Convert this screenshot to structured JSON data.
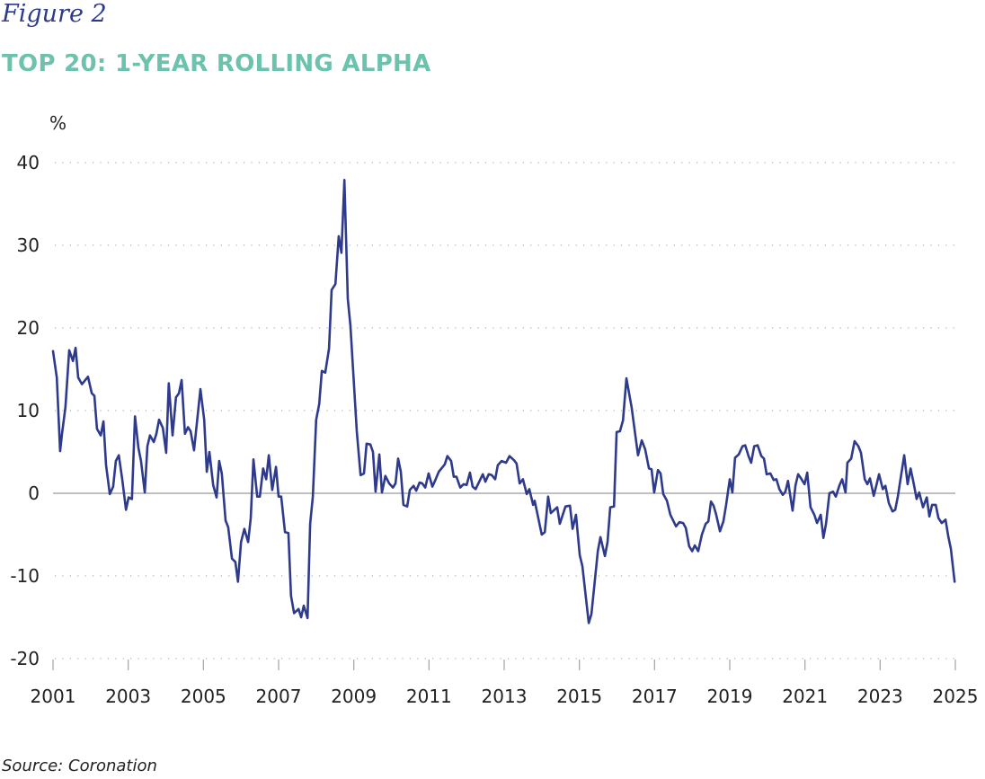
{
  "header": {
    "figure_label": "Figure 2",
    "title": "TOP 20: 1-YEAR ROLLING ALPHA"
  },
  "footer": {
    "source": "Source: Coronation"
  },
  "colors": {
    "line": "#2e3a8c",
    "title": "#6cc2ad",
    "figure_label": "#2e3a8c",
    "grid": "#b0b0b0",
    "zero_line": "#9a9a9a"
  },
  "chart_data": {
    "type": "line",
    "title": "TOP 20: 1-YEAR ROLLING ALPHA",
    "xlabel": "",
    "ylabel": "%",
    "xlim": [
      2001,
      2025
    ],
    "ylim": [
      -20,
      40
    ],
    "x_ticks": [
      "2001",
      "2003",
      "2005",
      "2007",
      "2009",
      "2011",
      "2013",
      "2015",
      "2017",
      "2019",
      "2021",
      "2023",
      "2025"
    ],
    "y_ticks": [
      "40",
      "30",
      "20",
      "10",
      "0",
      "-10",
      "-20"
    ],
    "grid": "horizontal dotted",
    "zero_line": true,
    "legend": "none",
    "series": [
      {
        "points": [
          [
            2001.0,
            17.2
          ],
          [
            2001.1,
            14.0
          ],
          [
            2001.19,
            5.1
          ],
          [
            2001.24,
            7.2
          ],
          [
            2001.33,
            10.4
          ],
          [
            2001.43,
            17.3
          ],
          [
            2001.53,
            16.0
          ],
          [
            2001.6,
            17.6
          ],
          [
            2001.67,
            14.0
          ],
          [
            2001.77,
            13.2
          ],
          [
            2001.93,
            14.1
          ],
          [
            2002.03,
            12.1
          ],
          [
            2002.1,
            11.8
          ],
          [
            2002.17,
            7.8
          ],
          [
            2002.27,
            7.0
          ],
          [
            2002.34,
            8.7
          ],
          [
            2002.41,
            3.4
          ],
          [
            2002.51,
            -0.1
          ],
          [
            2002.6,
            0.8
          ],
          [
            2002.67,
            3.9
          ],
          [
            2002.75,
            4.6
          ],
          [
            2002.84,
            1.7
          ],
          [
            2002.94,
            -2.0
          ],
          [
            2003.01,
            -0.5
          ],
          [
            2003.1,
            -0.7
          ],
          [
            2003.18,
            9.3
          ],
          [
            2003.27,
            5.5
          ],
          [
            2003.34,
            3.9
          ],
          [
            2003.44,
            0.1
          ],
          [
            2003.51,
            5.7
          ],
          [
            2003.58,
            7.0
          ],
          [
            2003.68,
            6.2
          ],
          [
            2003.75,
            7.2
          ],
          [
            2003.82,
            8.9
          ],
          [
            2003.92,
            7.9
          ],
          [
            2004.01,
            4.9
          ],
          [
            2004.08,
            13.3
          ],
          [
            2004.18,
            7.0
          ],
          [
            2004.27,
            11.6
          ],
          [
            2004.35,
            12.1
          ],
          [
            2004.42,
            13.7
          ],
          [
            2004.51,
            7.2
          ],
          [
            2004.59,
            8.0
          ],
          [
            2004.66,
            7.5
          ],
          [
            2004.75,
            5.2
          ],
          [
            2004.92,
            12.6
          ],
          [
            2005.02,
            8.9
          ],
          [
            2005.09,
            2.6
          ],
          [
            2005.16,
            5.0
          ],
          [
            2005.26,
            1.0
          ],
          [
            2005.35,
            -0.5
          ],
          [
            2005.42,
            3.9
          ],
          [
            2005.49,
            2.4
          ],
          [
            2005.59,
            -3.3
          ],
          [
            2005.66,
            -4.1
          ],
          [
            2005.76,
            -7.9
          ],
          [
            2005.85,
            -8.3
          ],
          [
            2005.92,
            -10.7
          ],
          [
            2006.0,
            -5.9
          ],
          [
            2006.09,
            -4.3
          ],
          [
            2006.19,
            -5.9
          ],
          [
            2006.26,
            -3.0
          ],
          [
            2006.33,
            4.1
          ],
          [
            2006.43,
            -0.4
          ],
          [
            2006.5,
            -0.4
          ],
          [
            2006.59,
            3.0
          ],
          [
            2006.67,
            1.7
          ],
          [
            2006.74,
            4.6
          ],
          [
            2006.83,
            0.4
          ],
          [
            2006.93,
            3.2
          ],
          [
            2007.0,
            -0.4
          ],
          [
            2007.07,
            -0.4
          ],
          [
            2007.17,
            -4.7
          ],
          [
            2007.26,
            -4.8
          ],
          [
            2007.33,
            -12.4
          ],
          [
            2007.41,
            -14.5
          ],
          [
            2007.53,
            -14.0
          ],
          [
            2007.6,
            -15.0
          ],
          [
            2007.67,
            -13.6
          ],
          [
            2007.77,
            -15.1
          ],
          [
            2007.84,
            -3.7
          ],
          [
            2007.91,
            -0.4
          ],
          [
            2008.0,
            8.9
          ],
          [
            2008.08,
            10.8
          ],
          [
            2008.15,
            14.8
          ],
          [
            2008.24,
            14.6
          ],
          [
            2008.34,
            17.5
          ],
          [
            2008.41,
            24.6
          ],
          [
            2008.51,
            25.3
          ],
          [
            2008.6,
            31.1
          ],
          [
            2008.67,
            29.1
          ],
          [
            2008.75,
            37.9
          ],
          [
            2008.84,
            23.5
          ],
          [
            2008.91,
            20.3
          ],
          [
            2009.08,
            7.5
          ],
          [
            2009.18,
            2.2
          ],
          [
            2009.27,
            2.4
          ],
          [
            2009.34,
            6.0
          ],
          [
            2009.44,
            5.9
          ],
          [
            2009.51,
            5.0
          ],
          [
            2009.58,
            0.2
          ],
          [
            2009.68,
            4.7
          ],
          [
            2009.75,
            0.1
          ],
          [
            2009.84,
            2.1
          ],
          [
            2009.94,
            1.2
          ],
          [
            2010.04,
            0.7
          ],
          [
            2010.11,
            1.2
          ],
          [
            2010.18,
            4.2
          ],
          [
            2010.25,
            2.6
          ],
          [
            2010.32,
            -1.4
          ],
          [
            2010.42,
            -1.6
          ],
          [
            2010.49,
            0.4
          ],
          [
            2010.59,
            0.9
          ],
          [
            2010.66,
            0.3
          ],
          [
            2010.75,
            1.3
          ],
          [
            2010.82,
            1.2
          ],
          [
            2010.9,
            0.7
          ],
          [
            2010.99,
            2.4
          ],
          [
            2011.09,
            0.8
          ],
          [
            2011.16,
            1.5
          ],
          [
            2011.26,
            2.6
          ],
          [
            2011.42,
            3.5
          ],
          [
            2011.49,
            4.5
          ],
          [
            2011.59,
            3.9
          ],
          [
            2011.66,
            2.0
          ],
          [
            2011.73,
            2.0
          ],
          [
            2011.83,
            0.7
          ],
          [
            2011.92,
            1.1
          ],
          [
            2012.0,
            1.0
          ],
          [
            2012.09,
            2.5
          ],
          [
            2012.16,
            0.8
          ],
          [
            2012.24,
            0.5
          ],
          [
            2012.43,
            2.3
          ],
          [
            2012.5,
            1.4
          ],
          [
            2012.59,
            2.3
          ],
          [
            2012.67,
            2.2
          ],
          [
            2012.76,
            1.7
          ],
          [
            2012.83,
            3.4
          ],
          [
            2012.93,
            3.9
          ],
          [
            2013.05,
            3.7
          ],
          [
            2013.14,
            4.5
          ],
          [
            2013.26,
            4.0
          ],
          [
            2013.33,
            3.6
          ],
          [
            2013.41,
            1.2
          ],
          [
            2013.5,
            1.7
          ],
          [
            2013.6,
            -0.1
          ],
          [
            2013.67,
            0.5
          ],
          [
            2013.77,
            -1.4
          ],
          [
            2013.81,
            -0.9
          ],
          [
            2014.0,
            -5.0
          ],
          [
            2014.08,
            -4.7
          ],
          [
            2014.17,
            -0.4
          ],
          [
            2014.24,
            -2.4
          ],
          [
            2014.41,
            -1.7
          ],
          [
            2014.48,
            -3.7
          ],
          [
            2014.63,
            -1.6
          ],
          [
            2014.75,
            -1.5
          ],
          [
            2014.82,
            -4.3
          ],
          [
            2014.91,
            -2.6
          ],
          [
            2015.01,
            -7.5
          ],
          [
            2015.08,
            -8.8
          ],
          [
            2015.25,
            -15.7
          ],
          [
            2015.32,
            -14.6
          ],
          [
            2015.49,
            -7.0
          ],
          [
            2015.56,
            -5.3
          ],
          [
            2015.68,
            -7.6
          ],
          [
            2015.75,
            -5.9
          ],
          [
            2015.82,
            -1.7
          ],
          [
            2015.92,
            -1.6
          ],
          [
            2015.99,
            7.4
          ],
          [
            2016.08,
            7.5
          ],
          [
            2016.16,
            8.8
          ],
          [
            2016.25,
            13.9
          ],
          [
            2016.39,
            10.4
          ],
          [
            2016.56,
            4.6
          ],
          [
            2016.66,
            6.4
          ],
          [
            2016.75,
            5.3
          ],
          [
            2016.85,
            3.0
          ],
          [
            2016.92,
            2.9
          ],
          [
            2016.99,
            0.1
          ],
          [
            2017.09,
            2.8
          ],
          [
            2017.16,
            2.4
          ],
          [
            2017.23,
            -0.1
          ],
          [
            2017.33,
            -0.9
          ],
          [
            2017.42,
            -2.6
          ],
          [
            2017.57,
            -4.0
          ],
          [
            2017.66,
            -3.5
          ],
          [
            2017.76,
            -3.6
          ],
          [
            2017.83,
            -4.2
          ],
          [
            2017.92,
            -6.4
          ],
          [
            2018.0,
            -7.0
          ],
          [
            2018.07,
            -6.3
          ],
          [
            2018.16,
            -7.0
          ],
          [
            2018.26,
            -5.0
          ],
          [
            2018.36,
            -3.7
          ],
          [
            2018.43,
            -3.4
          ],
          [
            2018.5,
            -1.0
          ],
          [
            2018.57,
            -1.5
          ],
          [
            2018.64,
            -2.6
          ],
          [
            2018.74,
            -4.6
          ],
          [
            2018.83,
            -3.4
          ],
          [
            2018.9,
            -1.5
          ],
          [
            2019.0,
            1.7
          ],
          [
            2019.07,
            0.1
          ],
          [
            2019.14,
            4.3
          ],
          [
            2019.24,
            4.7
          ],
          [
            2019.34,
            5.7
          ],
          [
            2019.41,
            5.8
          ],
          [
            2019.5,
            4.5
          ],
          [
            2019.57,
            3.7
          ],
          [
            2019.65,
            5.7
          ],
          [
            2019.74,
            5.8
          ],
          [
            2019.84,
            4.5
          ],
          [
            2019.91,
            4.2
          ],
          [
            2019.98,
            2.3
          ],
          [
            2020.08,
            2.4
          ],
          [
            2020.17,
            1.6
          ],
          [
            2020.24,
            1.7
          ],
          [
            2020.32,
            0.5
          ],
          [
            2020.41,
            -0.2
          ],
          [
            2020.48,
            0.2
          ],
          [
            2020.55,
            1.5
          ],
          [
            2020.67,
            -2.1
          ],
          [
            2020.75,
            1.0
          ],
          [
            2020.82,
            2.3
          ],
          [
            2020.91,
            1.7
          ],
          [
            2020.99,
            1.1
          ],
          [
            2021.06,
            2.5
          ],
          [
            2021.15,
            -1.7
          ],
          [
            2021.25,
            -2.6
          ],
          [
            2021.32,
            -3.6
          ],
          [
            2021.42,
            -2.6
          ],
          [
            2021.49,
            -5.4
          ],
          [
            2021.56,
            -3.7
          ],
          [
            2021.65,
            0.0
          ],
          [
            2021.75,
            0.2
          ],
          [
            2021.82,
            -0.4
          ],
          [
            2021.92,
            1.0
          ],
          [
            2021.99,
            1.7
          ],
          [
            2022.08,
            0.1
          ],
          [
            2022.13,
            3.7
          ],
          [
            2022.23,
            4.2
          ],
          [
            2022.32,
            6.3
          ],
          [
            2022.42,
            5.7
          ],
          [
            2022.49,
            4.9
          ],
          [
            2022.59,
            1.7
          ],
          [
            2022.66,
            1.1
          ],
          [
            2022.73,
            1.8
          ],
          [
            2022.83,
            -0.3
          ],
          [
            2022.9,
            1.0
          ],
          [
            2022.97,
            2.3
          ],
          [
            2023.07,
            0.5
          ],
          [
            2023.14,
            0.9
          ],
          [
            2023.23,
            -1.2
          ],
          [
            2023.33,
            -2.2
          ],
          [
            2023.4,
            -2.0
          ],
          [
            2023.47,
            -0.4
          ],
          [
            2023.64,
            4.6
          ],
          [
            2023.73,
            1.1
          ],
          [
            2023.81,
            3.0
          ],
          [
            2023.9,
            1.0
          ],
          [
            2023.97,
            -0.7
          ],
          [
            2024.04,
            0.1
          ],
          [
            2024.14,
            -1.7
          ],
          [
            2024.24,
            -0.5
          ],
          [
            2024.31,
            -2.8
          ],
          [
            2024.38,
            -1.4
          ],
          [
            2024.48,
            -1.4
          ],
          [
            2024.55,
            -3.0
          ],
          [
            2024.64,
            -3.6
          ],
          [
            2024.74,
            -3.2
          ],
          [
            2024.81,
            -5.2
          ],
          [
            2024.88,
            -6.7
          ],
          [
            2024.98,
            -10.7
          ]
        ]
      }
    ]
  }
}
